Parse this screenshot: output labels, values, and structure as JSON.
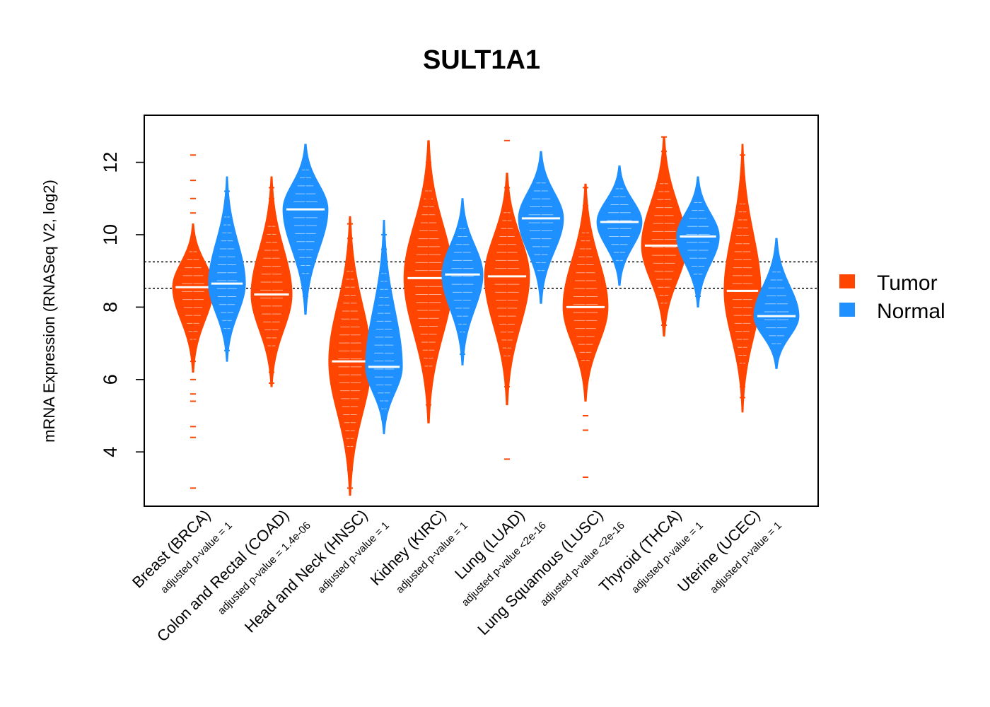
{
  "chart_data": {
    "type": "violin",
    "title": "SULT1A1",
    "ylabel": "mRNA Expression (RNASeq V2, log2)",
    "xlabel": "",
    "ylim": [
      2.5,
      13.3
    ],
    "yticks": [
      4,
      6,
      8,
      10,
      12
    ],
    "reference_lines": [
      8.52,
      9.25
    ],
    "legend": [
      {
        "name": "Tumor",
        "color": "#FF4500"
      },
      {
        "name": "Normal",
        "color": "#1E90FF"
      }
    ],
    "categories": [
      {
        "label": "Breast (BRCA)",
        "pvalue": "adjusted p-value = 1",
        "tumor": {
          "median": 8.55,
          "min": 6.2,
          "max": 10.3,
          "width": 0.5,
          "outliers": [
            12.2,
            11.5,
            11.0,
            10.6,
            6.5,
            6.0,
            5.6,
            5.4,
            4.7,
            4.4,
            3.0
          ]
        },
        "normal": {
          "median": 8.65,
          "min": 6.5,
          "max": 11.6,
          "width": 0.45,
          "outliers": [
            11.2,
            6.8
          ]
        }
      },
      {
        "label": "Colon and Rectal (COAD)",
        "pvalue": "adjusted p-value = 1.4e-06",
        "tumor": {
          "median": 8.35,
          "min": 5.8,
          "max": 11.6,
          "width": 0.5,
          "outliers": [
            11.3,
            11.0,
            6.2,
            5.9
          ]
        },
        "normal": {
          "median": 10.7,
          "min": 7.8,
          "max": 12.5,
          "width": 0.55,
          "outliers": [
            8.3
          ]
        }
      },
      {
        "label": "Head and Neck (HNSC)",
        "pvalue": "adjusted p-value = 1",
        "tumor": {
          "median": 6.5,
          "min": 2.8,
          "max": 10.5,
          "width": 0.52,
          "outliers": [
            10.3,
            9.9,
            9.6,
            3.5,
            3.0
          ]
        },
        "normal": {
          "median": 6.35,
          "min": 4.5,
          "max": 10.4,
          "width": 0.45,
          "outliers": [
            10.0,
            9.6,
            4.9
          ]
        }
      },
      {
        "label": "Kidney (KIRC)",
        "pvalue": "adjusted p-value = 1",
        "tumor": {
          "median": 8.8,
          "min": 4.8,
          "max": 12.6,
          "width": 0.6,
          "outliers": [
            12.0,
            11.5,
            11.0,
            5.8,
            5.3
          ]
        },
        "normal": {
          "median": 8.9,
          "min": 6.4,
          "max": 11.0,
          "width": 0.5,
          "outliers": [
            10.4,
            7.4,
            7.0,
            6.7
          ]
        }
      },
      {
        "label": "Lung (LUAD)",
        "pvalue": "adjusted p-value <2e-16",
        "tumor": {
          "median": 8.85,
          "min": 5.3,
          "max": 11.7,
          "width": 0.55,
          "outliers": [
            12.6,
            11.3,
            6.0,
            5.8,
            3.8
          ]
        },
        "normal": {
          "median": 10.45,
          "min": 8.1,
          "max": 12.3,
          "width": 0.55,
          "outliers": [
            9.1,
            8.8
          ]
        }
      },
      {
        "label": "Lung Squamous (LUSC)",
        "pvalue": "adjusted p-value <2e-16",
        "tumor": {
          "median": 8.0,
          "min": 5.4,
          "max": 11.4,
          "width": 0.55,
          "outliers": [
            11.3,
            10.8,
            10.2,
            5.0,
            4.6,
            3.3
          ]
        },
        "normal": {
          "median": 10.35,
          "min": 8.6,
          "max": 11.9,
          "width": 0.55,
          "outliers": [
            9.6,
            9.2
          ]
        }
      },
      {
        "label": "Thyroid (THCA)",
        "pvalue": "adjusted p-value = 1",
        "tumor": {
          "median": 9.7,
          "min": 7.2,
          "max": 12.7,
          "width": 0.55,
          "outliers": [
            12.7,
            12.3,
            11.8,
            7.8,
            7.5
          ]
        },
        "normal": {
          "median": 9.95,
          "min": 8.0,
          "max": 11.6,
          "width": 0.52,
          "outliers": [
            11.1,
            8.6,
            8.3
          ]
        }
      },
      {
        "label": "Uterine (UCEC)",
        "pvalue": "adjusted p-value = 1",
        "tumor": {
          "median": 8.45,
          "min": 5.1,
          "max": 12.5,
          "width": 0.45,
          "outliers": [
            12.2,
            11.6,
            11.0,
            5.8,
            5.5
          ]
        },
        "normal": {
          "median": 7.75,
          "min": 6.3,
          "max": 9.9,
          "width": 0.55,
          "outliers": [
            9.4,
            6.8
          ]
        }
      }
    ]
  }
}
